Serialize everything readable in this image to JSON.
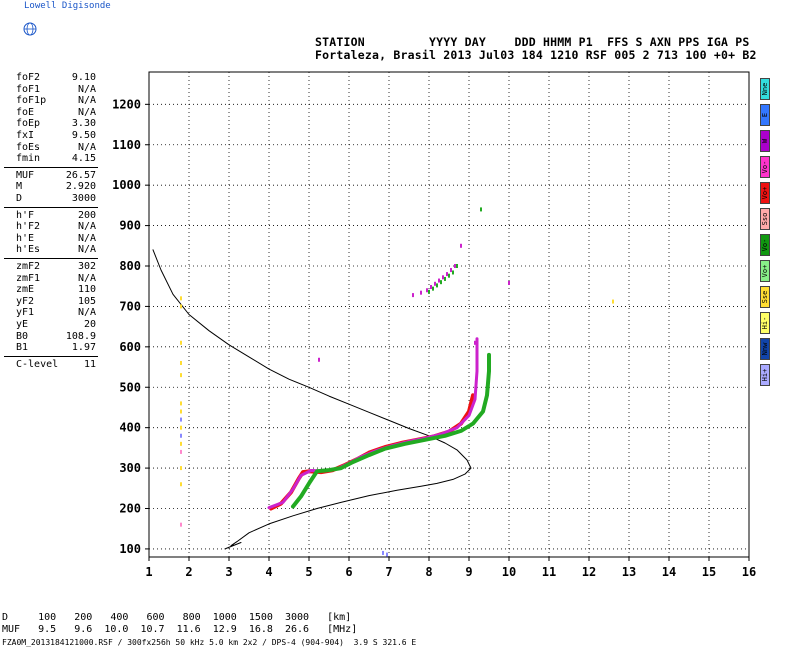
{
  "logo_text": "Lowell Digisonde",
  "header": {
    "line1": "STATION         YYYY DAY    DDD HHMM P1  FFS S AXN PPS IGA PS",
    "line2": "Fortaleza, Brasil 2013 Jul03 184 1210 RSF 005 2 713 100 +0+ B2"
  },
  "params_group1": [
    {
      "name": "foF2",
      "value": "9.10"
    },
    {
      "name": "foF1",
      "value": "N/A"
    },
    {
      "name": "foF1p",
      "value": "N/A"
    },
    {
      "name": "foE",
      "value": "N/A"
    },
    {
      "name": "foEp",
      "value": "3.30"
    },
    {
      "name": "fxI",
      "value": "9.50"
    },
    {
      "name": "foEs",
      "value": "N/A"
    },
    {
      "name": "fmin",
      "value": "4.15"
    }
  ],
  "params_group2": [
    {
      "name": "MUF",
      "value": "26.57"
    },
    {
      "name": "M",
      "value": "2.920"
    },
    {
      "name": "D",
      "value": "3000"
    }
  ],
  "params_group3": [
    {
      "name": "h'F",
      "value": "200"
    },
    {
      "name": "h'F2",
      "value": "N/A"
    },
    {
      "name": "h'E",
      "value": "N/A"
    },
    {
      "name": "h'Es",
      "value": "N/A"
    }
  ],
  "params_group4": [
    {
      "name": "zmF2",
      "value": "302"
    },
    {
      "name": "zmF1",
      "value": "N/A"
    },
    {
      "name": "zmE",
      "value": "110"
    },
    {
      "name": "yF2",
      "value": "105"
    },
    {
      "name": "yF1",
      "value": "N/A"
    },
    {
      "name": "yE",
      "value": "20"
    },
    {
      "name": "B0",
      "value": "108.9"
    },
    {
      "name": "B1",
      "value": "1.97"
    }
  ],
  "params_group5": [
    {
      "name": "C-level",
      "value": "11"
    }
  ],
  "legend": [
    {
      "label": "Nne",
      "color": "#33dddd"
    },
    {
      "label": "E",
      "color": "#3377ff"
    },
    {
      "label": "W",
      "color": "#aa00cc"
    },
    {
      "label": "Vo-",
      "color": "#ff33cc"
    },
    {
      "label": "Vo+",
      "color": "#ee1111"
    },
    {
      "label": "Sso",
      "color": "#ffaaaa"
    },
    {
      "label": "Vo-",
      "color": "#119911"
    },
    {
      "label": "Vo+",
      "color": "#88ee88"
    },
    {
      "label": "Sse",
      "color": "#ffdd33"
    },
    {
      "label": "Hi-",
      "color": "#ffff66"
    },
    {
      "label": "Nnw",
      "color": "#1144aa"
    },
    {
      "label": "Hi+",
      "color": "#aaaaff"
    }
  ],
  "bottom_table": {
    "row1": "D     100   200   400   600   800  1000  1500  3000   [km]",
    "row2": "MUF   9.5   9.6  10.0  10.7  11.6  12.9  16.8  26.6   [MHz]"
  },
  "footer": "FZA0M_2013184121000.RSF / 300fx256h 50 kHz 5.0 km 2x2 / DPS-4 (904-904)  3.9 S 321.6 E",
  "chart_data": {
    "type": "scatter",
    "xlim": [
      1,
      16
    ],
    "ylim": [
      80,
      1280
    ],
    "x_ticks": [
      1,
      2,
      3,
      4,
      5,
      6,
      7,
      8,
      9,
      10,
      11,
      12,
      13,
      14,
      15,
      16
    ],
    "y_ticks": [
      100,
      200,
      300,
      400,
      500,
      600,
      700,
      800,
      900,
      1000,
      1100,
      1200
    ],
    "grid": true,
    "series": [
      {
        "kind": "line",
        "color": "#000000",
        "points": [
          [
            1.1,
            840
          ],
          [
            1.3,
            790
          ],
          [
            1.6,
            730
          ],
          [
            2.0,
            680
          ],
          [
            2.5,
            640
          ],
          [
            3.0,
            605
          ],
          [
            3.5,
            575
          ],
          [
            4.0,
            545
          ],
          [
            4.5,
            520
          ],
          [
            5.0,
            500
          ],
          [
            5.5,
            478
          ],
          [
            6.0,
            458
          ],
          [
            6.5,
            438
          ],
          [
            7.0,
            418
          ],
          [
            7.5,
            398
          ],
          [
            8.0,
            380
          ],
          [
            8.4,
            362
          ],
          [
            8.7,
            345
          ],
          [
            8.95,
            320
          ],
          [
            9.05,
            300
          ],
          [
            8.9,
            285
          ],
          [
            8.6,
            272
          ],
          [
            8.2,
            262
          ],
          [
            7.8,
            255
          ],
          [
            7.2,
            245
          ],
          [
            6.5,
            232
          ],
          [
            5.8,
            215
          ],
          [
            5.2,
            200
          ],
          [
            4.6,
            182
          ],
          [
            4.0,
            162
          ],
          [
            3.5,
            140
          ],
          [
            3.2,
            118
          ],
          [
            3.05,
            108
          ],
          [
            3.15,
            110
          ],
          [
            3.3,
            116
          ],
          [
            2.9,
            100
          ]
        ]
      },
      {
        "kind": "trace",
        "color": "#ee1111",
        "width": 4,
        "points": [
          [
            4.05,
            200
          ],
          [
            4.3,
            212
          ],
          [
            4.55,
            240
          ],
          [
            4.75,
            275
          ],
          [
            4.85,
            290
          ],
          [
            5.0,
            292
          ],
          [
            5.3,
            290
          ],
          [
            5.6,
            295
          ],
          [
            5.9,
            308
          ],
          [
            6.2,
            322
          ],
          [
            6.5,
            338
          ],
          [
            6.9,
            352
          ],
          [
            7.3,
            362
          ],
          [
            7.7,
            370
          ],
          [
            8.1,
            378
          ],
          [
            8.5,
            390
          ],
          [
            8.8,
            410
          ],
          [
            9.0,
            440
          ],
          [
            9.1,
            480
          ]
        ]
      },
      {
        "kind": "trace",
        "color": "#cc22cc",
        "width": 3,
        "points": [
          [
            4.0,
            202
          ],
          [
            4.35,
            215
          ],
          [
            4.6,
            248
          ],
          [
            4.8,
            282
          ],
          [
            5.05,
            294
          ],
          [
            5.4,
            293
          ],
          [
            5.7,
            298
          ],
          [
            6.0,
            312
          ],
          [
            6.3,
            328
          ],
          [
            6.7,
            344
          ],
          [
            7.1,
            356
          ],
          [
            7.5,
            366
          ],
          [
            7.9,
            374
          ],
          [
            8.3,
            384
          ],
          [
            8.7,
            400
          ],
          [
            9.0,
            430
          ],
          [
            9.15,
            470
          ],
          [
            9.2,
            540
          ],
          [
            9.2,
            620
          ]
        ]
      },
      {
        "kind": "trace",
        "color": "#22aa22",
        "width": 4,
        "points": [
          [
            4.6,
            205
          ],
          [
            4.8,
            230
          ],
          [
            5.0,
            262
          ],
          [
            5.2,
            292
          ],
          [
            5.5,
            295
          ],
          [
            5.8,
            300
          ],
          [
            6.1,
            315
          ],
          [
            6.5,
            332
          ],
          [
            6.9,
            348
          ],
          [
            7.4,
            360
          ],
          [
            7.9,
            370
          ],
          [
            8.4,
            380
          ],
          [
            8.8,
            392
          ],
          [
            9.1,
            410
          ],
          [
            9.35,
            440
          ],
          [
            9.45,
            480
          ],
          [
            9.5,
            540
          ],
          [
            9.5,
            580
          ]
        ]
      },
      {
        "kind": "dots",
        "color": "#cc22cc",
        "points": [
          [
            7.6,
            728
          ],
          [
            7.8,
            734
          ],
          [
            7.95,
            740
          ],
          [
            8.05,
            748
          ],
          [
            8.15,
            756
          ],
          [
            8.25,
            764
          ],
          [
            8.35,
            772
          ],
          [
            8.45,
            780
          ],
          [
            8.55,
            790
          ],
          [
            8.65,
            800
          ],
          [
            8.8,
            850
          ],
          [
            10.0,
            758
          ],
          [
            5.25,
            568
          ],
          [
            9.15,
            610
          ]
        ]
      },
      {
        "kind": "dots",
        "color": "#22aa22",
        "points": [
          [
            8.0,
            736
          ],
          [
            8.1,
            744
          ],
          [
            8.2,
            752
          ],
          [
            8.3,
            760
          ],
          [
            8.4,
            768
          ],
          [
            8.5,
            776
          ],
          [
            8.6,
            784
          ],
          [
            9.3,
            940
          ],
          [
            8.7,
            800
          ]
        ]
      },
      {
        "kind": "dots",
        "color": "#ffdd33",
        "points": [
          [
            1.8,
            720
          ],
          [
            1.8,
            700
          ],
          [
            1.8,
            610
          ],
          [
            1.8,
            560
          ],
          [
            1.8,
            530
          ],
          [
            1.8,
            460
          ],
          [
            1.8,
            440
          ],
          [
            1.8,
            400
          ],
          [
            1.8,
            360
          ],
          [
            1.8,
            300
          ],
          [
            1.8,
            260
          ],
          [
            12.6,
            712
          ]
        ]
      },
      {
        "kind": "dots",
        "color": "#8888ff",
        "points": [
          [
            1.8,
            420
          ],
          [
            1.8,
            380
          ],
          [
            6.85,
            90
          ],
          [
            6.95,
            86
          ]
        ]
      },
      {
        "kind": "dots",
        "color": "#ff88cc",
        "points": [
          [
            1.8,
            160
          ],
          [
            1.8,
            340
          ]
        ]
      }
    ]
  }
}
